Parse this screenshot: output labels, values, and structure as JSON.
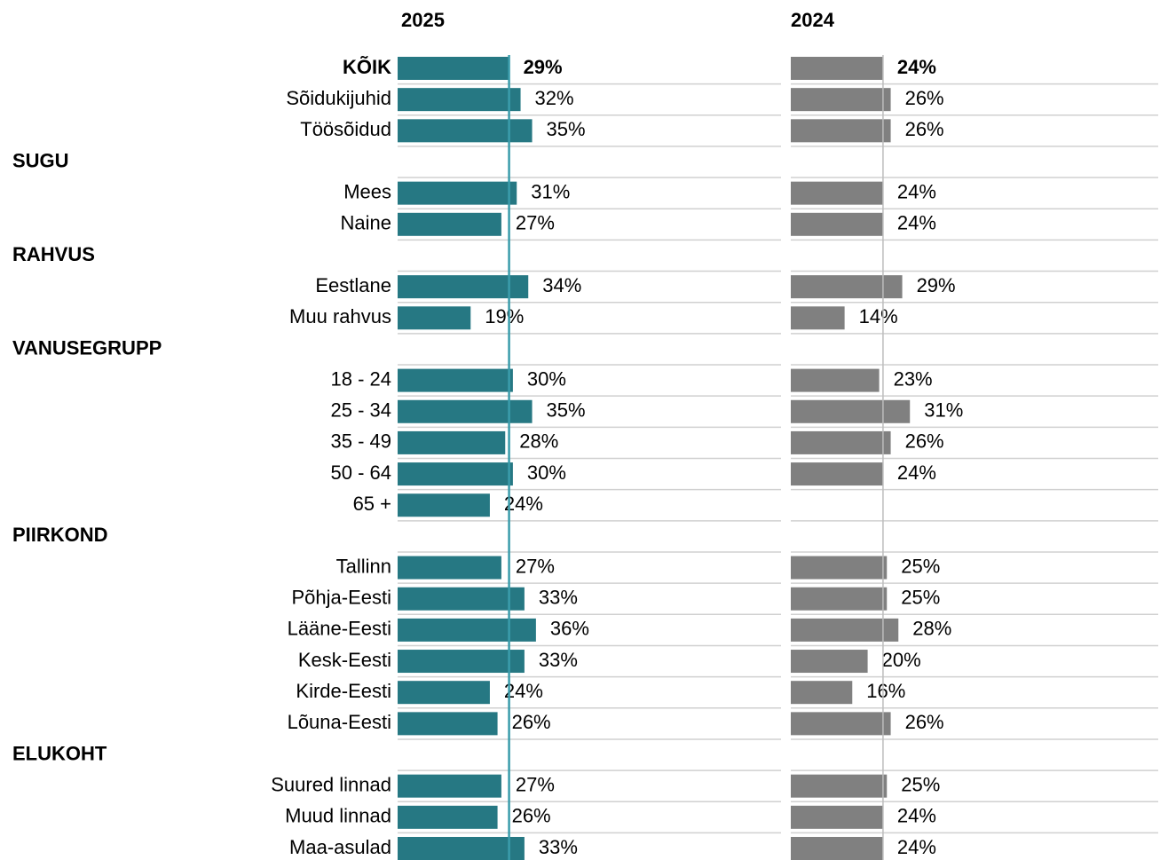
{
  "chart_data": {
    "type": "bar",
    "orientation": "horizontal",
    "categories": [
      "KÕIK",
      "Sõidukijuhid",
      "Töösõidud",
      "Mees",
      "Naine",
      "Eestlane",
      "Muu rahvus",
      "18 - 24",
      "25 - 34",
      "35 - 49",
      "50 - 64",
      "65 +",
      "Tallinn",
      "Põhja-Eesti",
      "Lääne-Eesti",
      "Kesk-Eesti",
      "Kirde-Eesti",
      "Lõuna-Eesti",
      "Suured linnad",
      "Muud linnad",
      "Maa-asulad"
    ],
    "groups": [
      {
        "name": "SUGU",
        "from": 3
      },
      {
        "name": "RAHVUS",
        "from": 5
      },
      {
        "name": "VANUSEGRUPP",
        "from": 7
      },
      {
        "name": "PIIRKOND",
        "from": 12
      },
      {
        "name": "ELUKOHT",
        "from": 18
      }
    ],
    "series": [
      {
        "name": "2025",
        "color": "#267883",
        "line_color": "#3a9cab",
        "values": [
          29,
          32,
          35,
          31,
          27,
          34,
          19,
          30,
          35,
          28,
          30,
          24,
          27,
          33,
          36,
          33,
          24,
          26,
          27,
          26,
          33
        ],
        "value_labels": [
          "29%",
          "32%",
          "35%",
          "31%",
          "27%",
          "34%",
          "19%",
          "30%",
          "35%",
          "28%",
          "30%",
          "24%",
          "27%",
          "33%",
          "36%",
          "33%",
          "24%",
          "26%",
          "27%",
          "26%",
          "33%"
        ]
      },
      {
        "name": "2024",
        "color": "#808080",
        "line_color": "#bdbdbd",
        "values": [
          24,
          26,
          26,
          24,
          24,
          29,
          14,
          23,
          31,
          26,
          24,
          null,
          25,
          25,
          28,
          20,
          16,
          26,
          25,
          24,
          24
        ],
        "value_labels": [
          "24%",
          "26%",
          "26%",
          "24%",
          "24%",
          "29%",
          "14%",
          "23%",
          "31%",
          "26%",
          "24%",
          null,
          "25%",
          "25%",
          "28%",
          "20%",
          "16%",
          "26%",
          "25%",
          "24%",
          "24%"
        ]
      }
    ]
  }
}
